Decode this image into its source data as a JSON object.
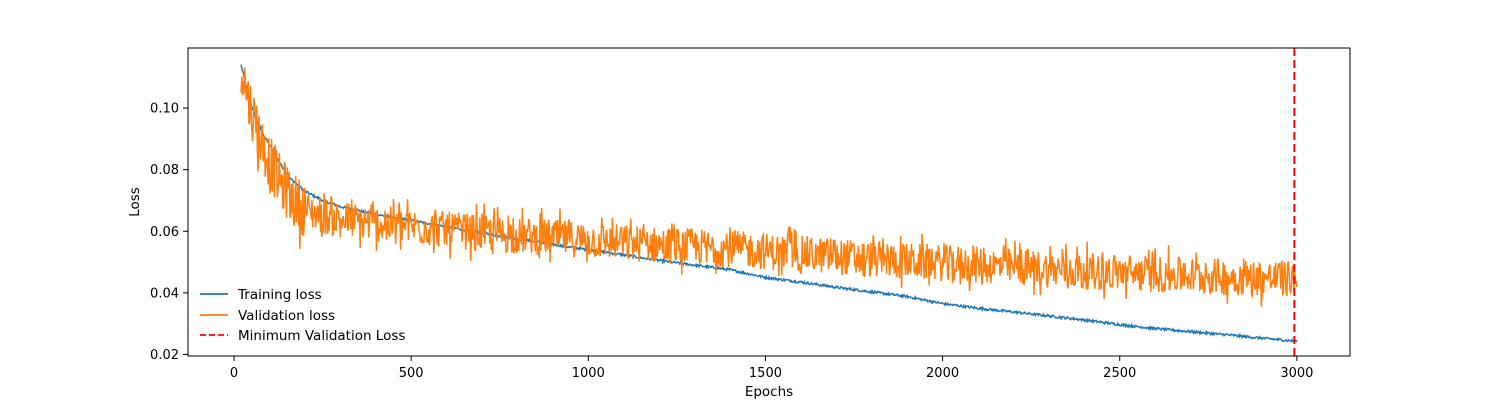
{
  "chart_data": {
    "type": "line",
    "title": "",
    "xlabel": "Epochs",
    "ylabel": "Loss",
    "xlim": [
      -130,
      3150
    ],
    "ylim": [
      0.0195,
      0.1195
    ],
    "xticks": [
      0,
      500,
      1000,
      1500,
      2000,
      2500,
      3000
    ],
    "yticks": [
      0.02,
      0.04,
      0.06,
      0.08,
      0.1
    ],
    "xtick_labels": [
      "0",
      "500",
      "1000",
      "1500",
      "2000",
      "2500",
      "3000"
    ],
    "ytick_labels": [
      "0.02",
      "0.04",
      "0.06",
      "0.08",
      "0.10"
    ],
    "grid": false,
    "legend_position": "lower-left",
    "series": [
      {
        "name": "Training loss",
        "color": "#1f77b4",
        "style": "solid",
        "x": [
          20,
          40,
          60,
          80,
          100,
          130,
          160,
          200,
          250,
          300,
          400,
          500,
          600,
          700,
          800,
          900,
          1000,
          1100,
          1200,
          1300,
          1400,
          1500,
          1600,
          1700,
          1800,
          1900,
          2000,
          2100,
          2200,
          2300,
          2400,
          2500,
          2600,
          2700,
          2800,
          2900,
          3000
        ],
        "y": [
          0.114,
          0.104,
          0.097,
          0.092,
          0.088,
          0.082,
          0.077,
          0.073,
          0.07,
          0.068,
          0.0655,
          0.0635,
          0.0615,
          0.0595,
          0.0575,
          0.0557,
          0.054,
          0.0523,
          0.0505,
          0.049,
          0.0475,
          0.045,
          0.0435,
          0.0418,
          0.0403,
          0.0388,
          0.0365,
          0.035,
          0.0338,
          0.0325,
          0.0312,
          0.0297,
          0.0284,
          0.0274,
          0.0264,
          0.0253,
          0.0243
        ]
      },
      {
        "name": "Validation loss",
        "color": "#ff7f0e",
        "style": "solid",
        "x": [
          20,
          40,
          60,
          80,
          100,
          130,
          160,
          200,
          250,
          300,
          400,
          500,
          600,
          700,
          800,
          900,
          1000,
          1100,
          1200,
          1300,
          1400,
          1500,
          1600,
          1700,
          1800,
          1900,
          2000,
          2100,
          2200,
          2300,
          2400,
          2500,
          2600,
          2700,
          2800,
          2900,
          3000
        ],
        "y": [
          0.114,
          0.103,
          0.095,
          0.088,
          0.083,
          0.076,
          0.071,
          0.067,
          0.065,
          0.064,
          0.0625,
          0.0615,
          0.0605,
          0.0595,
          0.0585,
          0.058,
          0.0572,
          0.0563,
          0.0555,
          0.055,
          0.0543,
          0.0535,
          0.0527,
          0.0518,
          0.051,
          0.0503,
          0.0497,
          0.049,
          0.0484,
          0.0477,
          0.0471,
          0.0466,
          0.0461,
          0.0456,
          0.0452,
          0.0448,
          0.0445
        ]
      },
      {
        "name": "Minimum Validation Loss",
        "color": "#ff0000",
        "style": "dashed",
        "x_value": 2993
      }
    ]
  }
}
